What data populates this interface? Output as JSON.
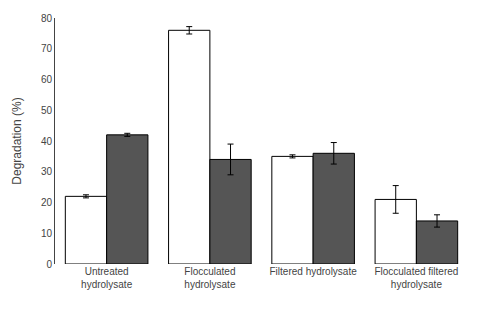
{
  "chart_data": {
    "type": "bar",
    "categories": [
      "Untreated\nhydrolysate",
      "Flocculated\nhydrolysate",
      "Filtered hydrolysate",
      "Flocculated filtered\nhydrolysate"
    ],
    "series": [
      {
        "color": "#ffffff",
        "values": [
          22,
          76,
          35,
          21
        ],
        "errors": [
          0.5,
          1.2,
          0.5,
          4.5
        ]
      },
      {
        "color": "#555555",
        "values": [
          42,
          34,
          36,
          14
        ],
        "errors": [
          0.5,
          5.0,
          3.5,
          2.0
        ]
      }
    ],
    "ylabel": "Degradation (%)",
    "ylim": [
      0,
      80
    ],
    "yticks": [
      0,
      10,
      20,
      30,
      40,
      50,
      60,
      70,
      80
    ],
    "grid": false
  }
}
